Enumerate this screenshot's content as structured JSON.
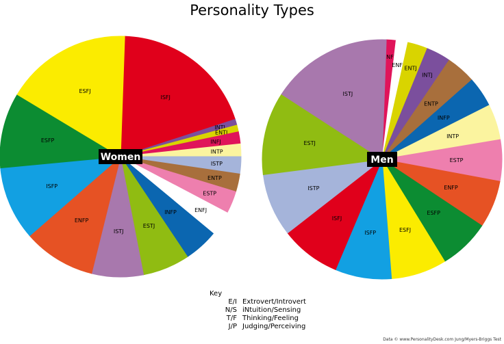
{
  "chart_data": [
    {
      "type": "pie",
      "title": "Personality Types",
      "center_label": "Women",
      "slices": [
        {
          "label": "ISFJ",
          "value": 19.4,
          "color": "#e0001b"
        },
        {
          "label": "INTJ",
          "value": 0.8,
          "color": "#7b4f9d"
        },
        {
          "label": "ENTJ",
          "value": 0.9,
          "color": "#d9d400"
        },
        {
          "label": "INFJ",
          "value": 1.6,
          "color": "#e0145a"
        },
        {
          "label": "INTP",
          "value": 1.7,
          "color": "#fbf49f"
        },
        {
          "label": "ISTP",
          "value": 2.3,
          "color": "#a5b4da"
        },
        {
          "label": "ENTP",
          "value": 2.4,
          "color": "#a86f3c"
        },
        {
          "label": "ESTP",
          "value": 3.0,
          "color": "#ee7fae"
        },
        {
          "label": "ENFJ",
          "value": 3.3,
          "color": "#ffffff"
        },
        {
          "label": "INFP",
          "value": 4.6,
          "color": "#0b66b0"
        },
        {
          "label": "ESTJ",
          "value": 6.3,
          "color": "#90bc12"
        },
        {
          "label": "ISTJ",
          "value": 6.9,
          "color": "#a878ad"
        },
        {
          "label": "ENFP",
          "value": 9.7,
          "color": "#e65224"
        },
        {
          "label": "ISFP",
          "value": 9.9,
          "color": "#12a0e2"
        },
        {
          "label": "ESFP",
          "value": 10.1,
          "color": "#0c8c32"
        },
        {
          "label": "ESFJ",
          "value": 16.9,
          "color": "#fbec00"
        }
      ]
    },
    {
      "type": "pie",
      "center_label": "Men",
      "slices": [
        {
          "label": "INFJ",
          "value": 1.3,
          "color": "#e0145a"
        },
        {
          "label": "ENFJ",
          "value": 1.6,
          "color": "#ffffff"
        },
        {
          "label": "ENTJ",
          "value": 2.7,
          "color": "#d9d400"
        },
        {
          "label": "INTJ",
          "value": 3.3,
          "color": "#7b4f9d"
        },
        {
          "label": "ENTP",
          "value": 4.0,
          "color": "#a86f3c"
        },
        {
          "label": "INFP",
          "value": 4.1,
          "color": "#0b66b0"
        },
        {
          "label": "INTP",
          "value": 4.8,
          "color": "#fbf49f"
        },
        {
          "label": "ESTP",
          "value": 5.6,
          "color": "#ee7fae"
        },
        {
          "label": "ENFP",
          "value": 6.4,
          "color": "#e65224"
        },
        {
          "label": "ESFP",
          "value": 6.9,
          "color": "#0c8c32"
        },
        {
          "label": "ESFJ",
          "value": 7.5,
          "color": "#fbec00"
        },
        {
          "label": "ISFP",
          "value": 7.6,
          "color": "#12a0e2"
        },
        {
          "label": "ISFJ",
          "value": 8.1,
          "color": "#e0001b"
        },
        {
          "label": "ISTP",
          "value": 8.5,
          "color": "#a5b4da"
        },
        {
          "label": "ESTJ",
          "value": 11.2,
          "color": "#90bc12"
        },
        {
          "label": "ISTJ",
          "value": 16.4,
          "color": "#a878ad"
        }
      ]
    }
  ],
  "key": {
    "title": "Key",
    "rows": [
      {
        "abbr": "E/I",
        "text": "Extrovert/Introvert"
      },
      {
        "abbr": "N/S",
        "text": "iNtuition/Sensing"
      },
      {
        "abbr": "T/F",
        "text": "Thinking/Feeling"
      },
      {
        "abbr": "J/P",
        "text": "Judging/Perceiving"
      }
    ]
  },
  "source": "Data © www.PersonalityDesk.com Jung/Myers-Briggs Test"
}
